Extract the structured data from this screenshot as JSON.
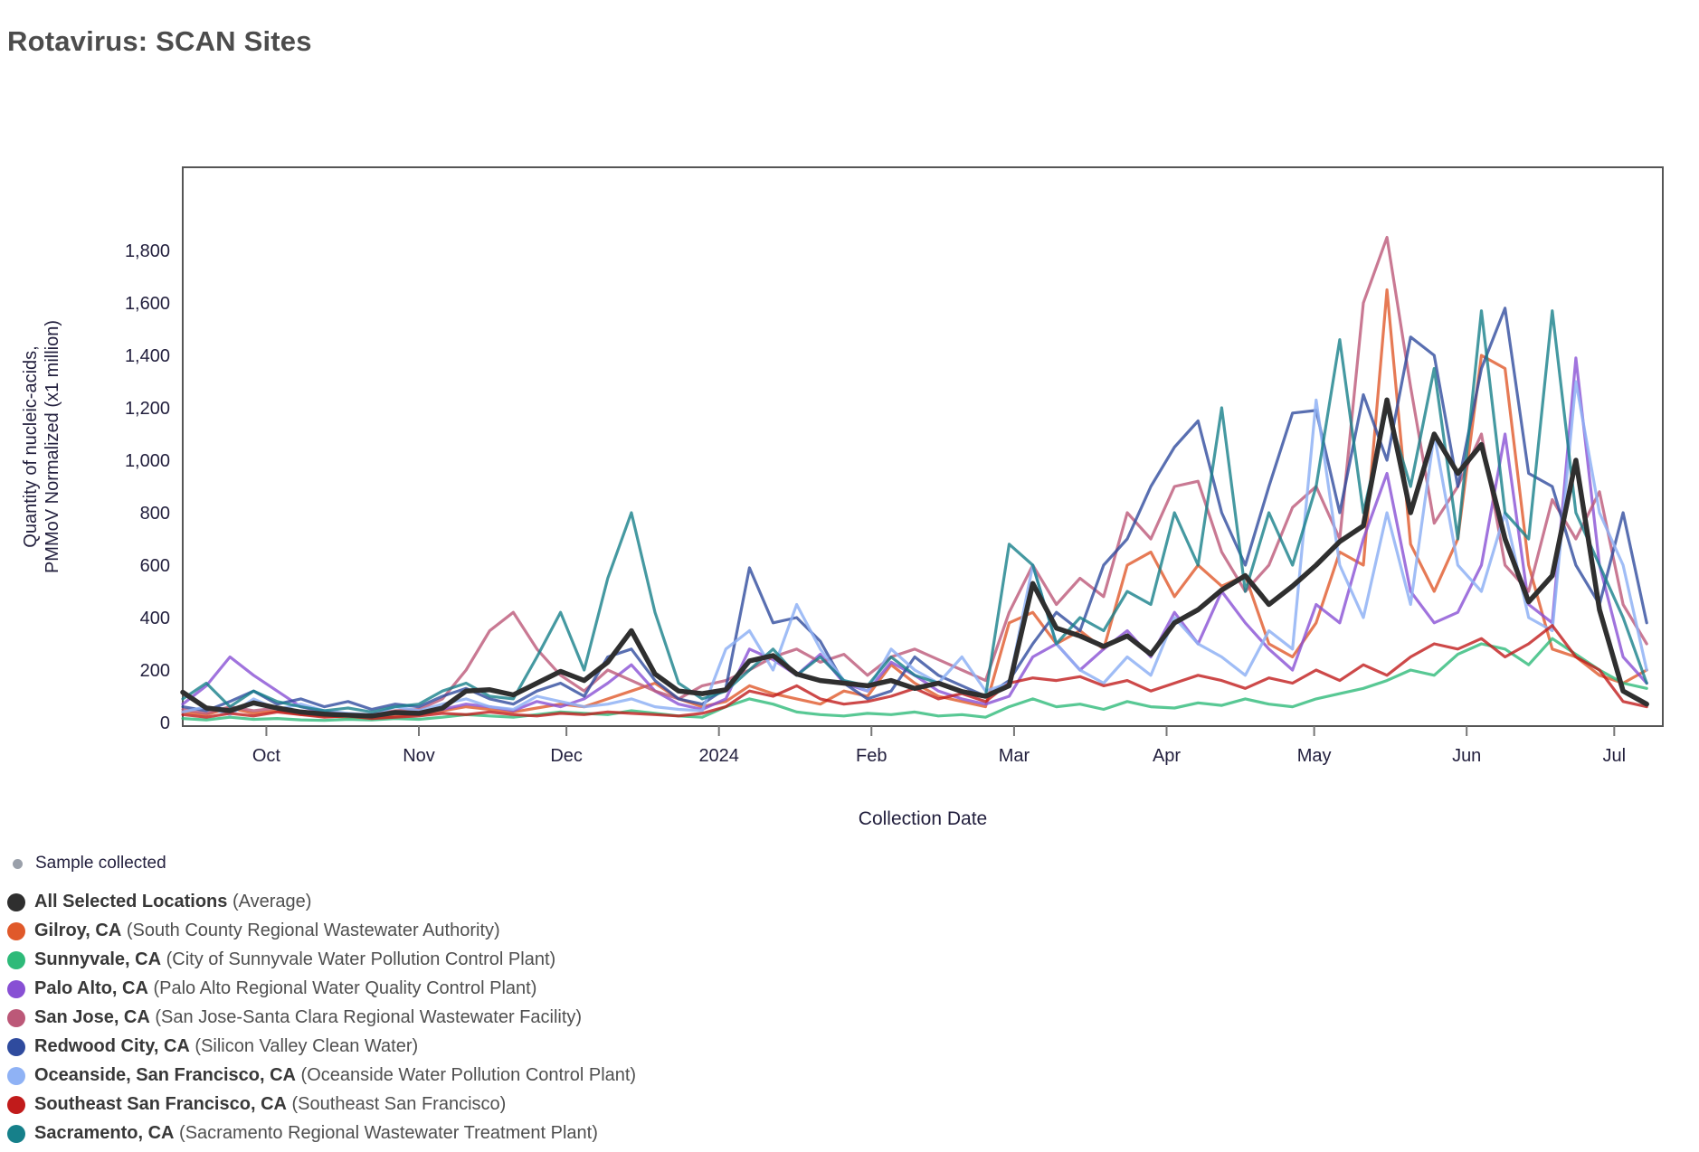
{
  "title": "Rotavirus: SCAN Sites",
  "palette": {
    "title_text": "#4c4c4c",
    "axis_text": "#23203e",
    "plot_border": "#555555",
    "tick_mark": "#777777",
    "legend_name_text": "#383838",
    "legend_detail_text": "#4f4f4f",
    "sample_dot": "#9aa0aa",
    "background": "#ffffff"
  },
  "sample_legend": {
    "label": "Sample collected",
    "color": "#9aa0aa"
  },
  "chart_data": {
    "type": "line",
    "title": "Rotavirus: SCAN Sites",
    "xlabel": "Collection Date",
    "ylabel_lines": [
      "Quantity of nucleic-acids,",
      "PMMoV Normalized (x1 million)"
    ],
    "grid": false,
    "legend_position": "bottom-left",
    "x_start_date": "2023-09-14",
    "x_sample_interval_days": 4.8,
    "ylim": [
      0,
      2100
    ],
    "x_ticks": [
      {
        "label": "Oct",
        "day": 17
      },
      {
        "label": "Nov",
        "day": 48
      },
      {
        "label": "Dec",
        "day": 78
      },
      {
        "label": "2024",
        "day": 109
      },
      {
        "label": "Feb",
        "day": 140
      },
      {
        "label": "Mar",
        "day": 169
      },
      {
        "label": "Apr",
        "day": 200
      },
      {
        "label": "May",
        "day": 230
      },
      {
        "label": "Jun",
        "day": 261
      },
      {
        "label": "Jul",
        "day": 291
      }
    ],
    "y_ticks": [
      {
        "label": "0",
        "value": 0
      },
      {
        "label": "200",
        "value": 200
      },
      {
        "label": "400",
        "value": 400
      },
      {
        "label": "600",
        "value": 600
      },
      {
        "label": "800",
        "value": 800
      },
      {
        "label": "1,000",
        "value": 1000
      },
      {
        "label": "1,200",
        "value": 1200
      },
      {
        "label": "1,400",
        "value": 1400
      },
      {
        "label": "1,600",
        "value": 1600
      },
      {
        "label": "1,800",
        "value": 1800
      }
    ],
    "series": [
      {
        "name": "All Selected Locations",
        "detail": "(Average)",
        "color": "#2f2f2f",
        "width": 5.5,
        "opacity": 1,
        "values": [
          115,
          55,
          45,
          75,
          55,
          40,
          32,
          28,
          25,
          38,
          35,
          55,
          120,
          125,
          105,
          150,
          195,
          160,
          230,
          350,
          185,
          120,
          110,
          125,
          235,
          255,
          185,
          160,
          150,
          140,
          160,
          130,
          150,
          118,
          100,
          140,
          530,
          360,
          330,
          290,
          330,
          260,
          380,
          430,
          505,
          560,
          450,
          520,
          600,
          690,
          750,
          1230,
          800,
          1100,
          950,
          1060,
          700,
          460,
          560,
          1000,
          430,
          120,
          70
        ]
      },
      {
        "name": "Gilroy, CA",
        "detail": "(South County Regional Wastewater Authority)",
        "color": "#e0592a",
        "width": 3.2,
        "opacity": 0.8,
        "values": [
          40,
          30,
          55,
          35,
          45,
          30,
          25,
          20,
          18,
          25,
          30,
          45,
          60,
          50,
          40,
          55,
          70,
          60,
          90,
          120,
          150,
          90,
          60,
          80,
          140,
          110,
          90,
          70,
          120,
          100,
          220,
          150,
          100,
          80,
          60,
          380,
          420,
          300,
          350,
          280,
          600,
          650,
          480,
          600,
          520,
          560,
          300,
          250,
          380,
          650,
          600,
          1650,
          680,
          500,
          700,
          1400,
          1350,
          600,
          280,
          250,
          180,
          150,
          200
        ]
      },
      {
        "name": "Sunnyvale, CA",
        "detail": "(City of Sunnyvale Water Pollution Control Plant)",
        "color": "#2eba79",
        "width": 3.2,
        "opacity": 0.8,
        "values": [
          15,
          10,
          20,
          12,
          15,
          10,
          8,
          12,
          10,
          15,
          12,
          20,
          30,
          25,
          20,
          30,
          40,
          35,
          30,
          45,
          35,
          25,
          20,
          60,
          90,
          70,
          40,
          30,
          25,
          35,
          30,
          40,
          25,
          30,
          20,
          60,
          90,
          60,
          70,
          50,
          80,
          60,
          55,
          75,
          65,
          90,
          70,
          60,
          90,
          110,
          130,
          160,
          200,
          180,
          260,
          300,
          280,
          220,
          320,
          260,
          200,
          150,
          130
        ]
      },
      {
        "name": "Palo Alto, CA",
        "detail": "(Palo Alto Regional Water Quality Control Plant)",
        "color": "#8850d4",
        "width": 3.2,
        "opacity": 0.8,
        "values": [
          70,
          140,
          250,
          180,
          120,
          60,
          40,
          30,
          25,
          40,
          35,
          50,
          70,
          60,
          45,
          80,
          60,
          90,
          150,
          220,
          120,
          70,
          50,
          90,
          280,
          240,
          180,
          260,
          150,
          120,
          230,
          180,
          120,
          90,
          70,
          100,
          250,
          300,
          200,
          280,
          350,
          250,
          420,
          300,
          500,
          380,
          280,
          200,
          450,
          380,
          700,
          950,
          500,
          380,
          420,
          600,
          1100,
          450,
          380,
          1390,
          600,
          250,
          150
        ]
      },
      {
        "name": "San Jose, CA",
        "detail": "(San Jose-Santa Clara Regional Wastewater Facility)",
        "color": "#bc5878",
        "width": 3.2,
        "opacity": 0.8,
        "values": [
          50,
          35,
          60,
          45,
          55,
          40,
          30,
          25,
          30,
          45,
          50,
          90,
          200,
          350,
          420,
          280,
          180,
          120,
          200,
          160,
          120,
          90,
          140,
          160,
          200,
          250,
          280,
          230,
          260,
          180,
          250,
          280,
          240,
          200,
          160,
          420,
          600,
          450,
          550,
          480,
          800,
          700,
          900,
          920,
          650,
          500,
          600,
          820,
          900,
          700,
          1600,
          1850,
          1280,
          760,
          900,
          1100,
          600,
          500,
          850,
          700,
          880,
          450,
          300
        ]
      },
      {
        "name": "Redwood City, CA",
        "detail": "(Silicon Valley Clean Water)",
        "color": "#2f4b9e",
        "width": 3.2,
        "opacity": 0.8,
        "values": [
          60,
          45,
          80,
          120,
          70,
          90,
          60,
          80,
          50,
          70,
          60,
          100,
          130,
          90,
          70,
          120,
          150,
          100,
          250,
          280,
          160,
          90,
          70,
          130,
          590,
          380,
          400,
          310,
          150,
          90,
          120,
          250,
          180,
          140,
          100,
          160,
          300,
          420,
          350,
          600,
          700,
          900,
          1050,
          1150,
          800,
          600,
          900,
          1180,
          1190,
          800,
          1250,
          1000,
          1470,
          1400,
          900,
          1350,
          1580,
          950,
          900,
          600,
          450,
          800,
          380
        ]
      },
      {
        "name": "Oceanside, San Francisco, CA",
        "detail": "(Oceanside Water Pollution Control Plant)",
        "color": "#8fb2f5",
        "width": 3.2,
        "opacity": 0.85,
        "values": [
          40,
          60,
          30,
          90,
          50,
          70,
          45,
          35,
          30,
          60,
          45,
          70,
          90,
          60,
          50,
          100,
          80,
          60,
          70,
          90,
          60,
          50,
          45,
          280,
          350,
          200,
          450,
          280,
          160,
          120,
          280,
          200,
          150,
          250,
          120,
          150,
          600,
          300,
          200,
          150,
          250,
          180,
          400,
          300,
          250,
          180,
          350,
          280,
          1230,
          600,
          400,
          800,
          450,
          1100,
          600,
          500,
          800,
          400,
          350,
          1300,
          800,
          600,
          200
        ]
      },
      {
        "name": "Southeast San Francisco, CA",
        "detail": "(Southeast San Francisco)",
        "color": "#c11b1b",
        "width": 3.2,
        "opacity": 0.8,
        "values": [
          30,
          20,
          35,
          25,
          40,
          30,
          20,
          25,
          15,
          20,
          25,
          35,
          30,
          40,
          30,
          25,
          35,
          30,
          40,
          35,
          30,
          25,
          35,
          60,
          120,
          100,
          140,
          90,
          70,
          80,
          100,
          130,
          90,
          110,
          80,
          150,
          170,
          160,
          175,
          140,
          160,
          120,
          150,
          180,
          160,
          130,
          170,
          150,
          200,
          160,
          220,
          180,
          250,
          300,
          280,
          320,
          250,
          300,
          370,
          250,
          200,
          80,
          60
        ]
      },
      {
        "name": "Sacramento, CA",
        "detail": "(Sacramento Regional Wastewater Treatment Plant)",
        "color": "#16808a",
        "width": 3.2,
        "opacity": 0.8,
        "values": [
          90,
          150,
          60,
          120,
          80,
          60,
          45,
          55,
          40,
          60,
          70,
          120,
          150,
          100,
          90,
          250,
          420,
          200,
          550,
          800,
          420,
          150,
          90,
          120,
          200,
          280,
          180,
          250,
          160,
          140,
          250,
          180,
          150,
          120,
          100,
          680,
          600,
          300,
          400,
          350,
          500,
          450,
          800,
          600,
          1200,
          500,
          800,
          600,
          900,
          1460,
          800,
          1200,
          900,
          1350,
          700,
          1570,
          800,
          700,
          1570,
          800,
          600,
          400,
          150
        ]
      }
    ]
  }
}
